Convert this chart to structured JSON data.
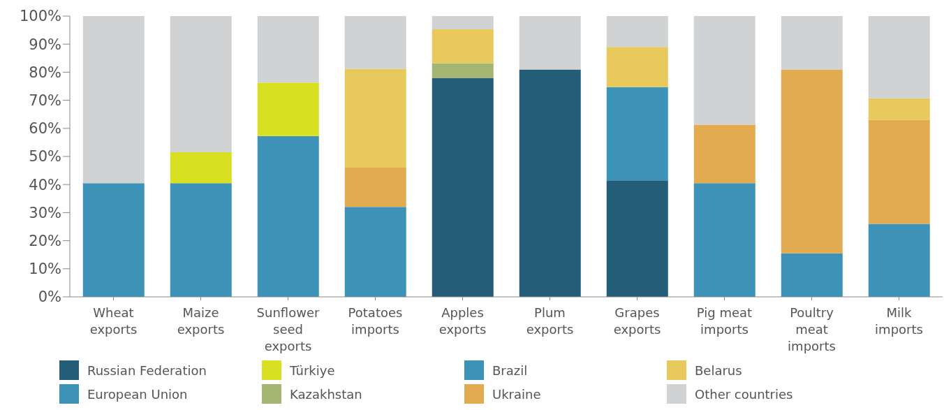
{
  "chart_data": {
    "type": "bar",
    "stacked": true,
    "categories": [
      "Wheat exports",
      "Maize exports",
      "Sunflower seed exports",
      "Potatoes imports",
      "Apples exports",
      "Plum exports",
      "Grapes exports",
      "Pig meat imports",
      "Poultry meat imports",
      "Milk imports"
    ],
    "series": [
      {
        "name": "Russian Federation",
        "color": "#235d77",
        "values": [
          null,
          null,
          null,
          null,
          78,
          81,
          41.5,
          null,
          null,
          null
        ]
      },
      {
        "name": "European Union",
        "color": "#3d93b7",
        "values": [
          40.5,
          40.5,
          57.3,
          32,
          null,
          null,
          33.2,
          null,
          null,
          26
        ]
      },
      {
        "name": "Türkiye",
        "color": "#d7e021",
        "values": [
          null,
          11,
          19,
          null,
          null,
          null,
          null,
          null,
          null,
          null
        ]
      },
      {
        "name": "Kazakhstan",
        "color": "#a4b572",
        "values": [
          null,
          null,
          null,
          null,
          5.2,
          null,
          null,
          null,
          null,
          null
        ]
      },
      {
        "name": "Brazil",
        "color": "#3d93b7",
        "values": [
          null,
          null,
          null,
          null,
          null,
          null,
          null,
          40.5,
          15.5,
          null
        ]
      },
      {
        "name": "Ukraine",
        "color": "#e2aa51",
        "values": [
          null,
          null,
          null,
          14,
          null,
          null,
          null,
          20.8,
          65.5,
          37
        ]
      },
      {
        "name": "Belarus",
        "color": "#e7c95c",
        "values": [
          null,
          null,
          null,
          35.2,
          12.1,
          null,
          14.3,
          null,
          null,
          7.7
        ]
      },
      {
        "name": "Other countries",
        "color": "#d1d2d4",
        "values": [
          59.5,
          48.5,
          23.7,
          18.8,
          4.7,
          19,
          11,
          38.7,
          19,
          29.3
        ]
      }
    ],
    "ylim": [
      0,
      100
    ],
    "yticks": [
      {
        "value": 0,
        "label": "0%"
      },
      {
        "value": 10,
        "label": "10%"
      },
      {
        "value": 20,
        "label": "20%"
      },
      {
        "value": 30,
        "label": "30%"
      },
      {
        "value": 40,
        "label": "40%"
      },
      {
        "value": 50,
        "label": "50%"
      },
      {
        "value": 60,
        "label": "60%"
      },
      {
        "value": 70,
        "label": "70%"
      },
      {
        "value": 80,
        "label": "80%"
      },
      {
        "value": 90,
        "label": "90%"
      },
      {
        "value": 100,
        "label": "100%"
      }
    ],
    "grid": false,
    "legend": "bottom"
  }
}
